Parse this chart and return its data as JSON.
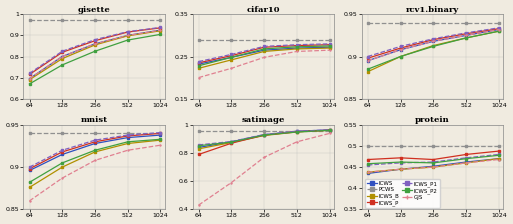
{
  "x": [
    64,
    128,
    256,
    512,
    1024
  ],
  "datasets": {
    "gisette": {
      "ylim": [
        0.6,
        1.0
      ],
      "yticks": [
        0.6,
        0.7,
        0.8,
        0.9,
        1.0
      ],
      "yticklabels": [
        "0.6",
        "0.7",
        "0.8",
        "0.9",
        "1"
      ],
      "series": {
        "ICWS": {
          "values": [
            0.695,
            0.8,
            0.86,
            0.9,
            0.925
          ],
          "color": "#3050c0",
          "style": "-",
          "marker": "s",
          "lw": 0.9
        },
        "PCWS": {
          "values": [
            0.975,
            0.975,
            0.975,
            0.975,
            0.975
          ],
          "color": "#909090",
          "style": "--",
          "marker": "s",
          "lw": 0.9
        },
        "ICWS_B": {
          "values": [
            0.69,
            0.79,
            0.855,
            0.898,
            0.922
          ],
          "color": "#b09000",
          "style": "-",
          "marker": "s",
          "lw": 0.9
        },
        "ICWS_P": {
          "values": [
            0.715,
            0.82,
            0.875,
            0.916,
            0.936
          ],
          "color": "#d03020",
          "style": "-",
          "marker": "s",
          "lw": 0.9
        },
        "ICWS_P1": {
          "values": [
            0.72,
            0.825,
            0.88,
            0.918,
            0.938
          ],
          "color": "#8060c0",
          "style": "--",
          "marker": "s",
          "lw": 0.9
        },
        "ICWS_P2": {
          "values": [
            0.67,
            0.76,
            0.825,
            0.878,
            0.905
          ],
          "color": "#40a040",
          "style": "-",
          "marker": "s",
          "lw": 0.9
        },
        "GJS": {
          "values": [
            0.695,
            0.8,
            0.86,
            0.9,
            0.925
          ],
          "color": "#e08090",
          "style": "--",
          "marker": "+",
          "lw": 0.9
        }
      }
    },
    "cifar10": {
      "ylim": [
        0.15,
        0.35
      ],
      "yticks": [
        0.15,
        0.25,
        0.35
      ],
      "yticklabels": [
        "0.15",
        "0.25",
        "0.35"
      ],
      "series": {
        "ICWS": {
          "values": [
            0.232,
            0.248,
            0.265,
            0.27,
            0.272
          ],
          "color": "#3050c0",
          "style": "-",
          "marker": "s",
          "lw": 0.9
        },
        "PCWS": {
          "values": [
            0.29,
            0.29,
            0.29,
            0.29,
            0.29
          ],
          "color": "#909090",
          "style": "--",
          "marker": "s",
          "lw": 0.9
        },
        "ICWS_B": {
          "values": [
            0.222,
            0.242,
            0.262,
            0.268,
            0.27
          ],
          "color": "#b09000",
          "style": "-",
          "marker": "s",
          "lw": 0.9
        },
        "ICWS_P": {
          "values": [
            0.235,
            0.252,
            0.272,
            0.276,
            0.278
          ],
          "color": "#d03020",
          "style": "-",
          "marker": "s",
          "lw": 0.9
        },
        "ICWS_P1": {
          "values": [
            0.238,
            0.255,
            0.274,
            0.278,
            0.28
          ],
          "color": "#8060c0",
          "style": "--",
          "marker": "s",
          "lw": 0.9
        },
        "ICWS_P2": {
          "values": [
            0.228,
            0.248,
            0.268,
            0.273,
            0.275
          ],
          "color": "#40a040",
          "style": "-",
          "marker": "s",
          "lw": 0.9
        },
        "GJS": {
          "values": [
            0.2,
            0.222,
            0.248,
            0.262,
            0.265
          ],
          "color": "#e08090",
          "style": "--",
          "marker": "+",
          "lw": 0.9
        }
      }
    },
    "rcv1.binary": {
      "ylim": [
        0.85,
        0.95
      ],
      "yticks": [
        0.85,
        0.9,
        0.95
      ],
      "yticklabels": [
        "0.85",
        "0.9",
        "0.95"
      ],
      "series": {
        "ICWS": {
          "values": [
            0.895,
            0.908,
            0.918,
            0.925,
            0.932
          ],
          "color": "#3050c0",
          "style": "-",
          "marker": "s",
          "lw": 0.9
        },
        "PCWS": {
          "values": [
            0.94,
            0.94,
            0.94,
            0.94,
            0.94
          ],
          "color": "#909090",
          "style": "--",
          "marker": "s",
          "lw": 0.9
        },
        "ICWS_B": {
          "values": [
            0.882,
            0.9,
            0.913,
            0.922,
            0.93
          ],
          "color": "#b09000",
          "style": "-",
          "marker": "s",
          "lw": 0.9
        },
        "ICWS_P": {
          "values": [
            0.898,
            0.91,
            0.92,
            0.927,
            0.933
          ],
          "color": "#d03020",
          "style": "-",
          "marker": "s",
          "lw": 0.9
        },
        "ICWS_P1": {
          "values": [
            0.9,
            0.912,
            0.921,
            0.928,
            0.934
          ],
          "color": "#8060c0",
          "style": "--",
          "marker": "s",
          "lw": 0.9
        },
        "ICWS_P2": {
          "values": [
            0.885,
            0.9,
            0.912,
            0.922,
            0.93
          ],
          "color": "#40a040",
          "style": "-",
          "marker": "s",
          "lw": 0.9
        },
        "GJS": {
          "values": [
            0.895,
            0.908,
            0.918,
            0.925,
            0.932
          ],
          "color": "#e08090",
          "style": "--",
          "marker": "+",
          "lw": 0.9
        }
      }
    },
    "mnist": {
      "ylim": [
        0.85,
        0.95
      ],
      "yticks": [
        0.85,
        0.9,
        0.95
      ],
      "yticklabels": [
        "0.85",
        "0.9",
        "0.95"
      ],
      "series": {
        "ICWS": {
          "values": [
            0.896,
            0.915,
            0.928,
            0.935,
            0.938
          ],
          "color": "#3050c0",
          "style": "-",
          "marker": "s",
          "lw": 0.9
        },
        "PCWS": {
          "values": [
            0.94,
            0.94,
            0.94,
            0.94,
            0.94
          ],
          "color": "#909090",
          "style": "--",
          "marker": "s",
          "lw": 0.9
        },
        "ICWS_B": {
          "values": [
            0.876,
            0.9,
            0.918,
            0.928,
            0.932
          ],
          "color": "#b09000",
          "style": "-",
          "marker": "s",
          "lw": 0.9
        },
        "ICWS_P": {
          "values": [
            0.898,
            0.918,
            0.93,
            0.937,
            0.94
          ],
          "color": "#d03020",
          "style": "-",
          "marker": "s",
          "lw": 0.9
        },
        "ICWS_P1": {
          "values": [
            0.9,
            0.92,
            0.932,
            0.938,
            0.941
          ],
          "color": "#8060c0",
          "style": "--",
          "marker": "s",
          "lw": 0.9
        },
        "ICWS_P2": {
          "values": [
            0.882,
            0.905,
            0.92,
            0.93,
            0.933
          ],
          "color": "#40a040",
          "style": "-",
          "marker": "s",
          "lw": 0.9
        },
        "GJS": {
          "values": [
            0.86,
            0.887,
            0.908,
            0.92,
            0.926
          ],
          "color": "#e08090",
          "style": "--",
          "marker": "+",
          "lw": 0.9
        }
      }
    },
    "satimage": {
      "ylim": [
        0.4,
        1.0
      ],
      "yticks": [
        0.4,
        0.6,
        0.8,
        1.0
      ],
      "yticklabels": [
        "0.4",
        "0.6",
        "0.8",
        "1"
      ],
      "series": {
        "ICWS": {
          "values": [
            0.84,
            0.88,
            0.93,
            0.955,
            0.965
          ],
          "color": "#3050c0",
          "style": "-",
          "marker": "s",
          "lw": 0.9
        },
        "PCWS": {
          "values": [
            0.96,
            0.96,
            0.96,
            0.96,
            0.96
          ],
          "color": "#909090",
          "style": "--",
          "marker": "s",
          "lw": 0.9
        },
        "ICWS_B": {
          "values": [
            0.83,
            0.875,
            0.925,
            0.95,
            0.962
          ],
          "color": "#b09000",
          "style": "-",
          "marker": "s",
          "lw": 0.9
        },
        "ICWS_P": {
          "values": [
            0.79,
            0.87,
            0.928,
            0.952,
            0.963
          ],
          "color": "#d03020",
          "style": "-",
          "marker": "s",
          "lw": 0.9
        },
        "ICWS_P1": {
          "values": [
            0.858,
            0.882,
            0.932,
            0.955,
            0.965
          ],
          "color": "#8060c0",
          "style": "--",
          "marker": "s",
          "lw": 0.9
        },
        "ICWS_P2": {
          "values": [
            0.852,
            0.878,
            0.928,
            0.95,
            0.962
          ],
          "color": "#40a040",
          "style": "-",
          "marker": "s",
          "lw": 0.9
        },
        "GJS": {
          "values": [
            0.43,
            0.59,
            0.77,
            0.88,
            0.94
          ],
          "color": "#e08090",
          "style": "--",
          "marker": "+",
          "lw": 0.9
        }
      }
    },
    "protein": {
      "ylim": [
        0.35,
        0.55
      ],
      "yticks": [
        0.35,
        0.4,
        0.45,
        0.5,
        0.55
      ],
      "yticklabels": [
        "0.35",
        "0.4",
        "0.45",
        "0.5",
        "0.55"
      ],
      "series": {
        "ICWS": {
          "values": [
            0.435,
            0.445,
            0.452,
            0.462,
            0.47
          ],
          "color": "#3050c0",
          "style": "-",
          "marker": "s",
          "lw": 0.9
        },
        "PCWS": {
          "values": [
            0.5,
            0.5,
            0.5,
            0.5,
            0.5
          ],
          "color": "#909090",
          "style": "--",
          "marker": "s",
          "lw": 0.9
        },
        "ICWS_B": {
          "values": [
            0.438,
            0.445,
            0.45,
            0.46,
            0.47
          ],
          "color": "#b09000",
          "style": "-",
          "marker": "s",
          "lw": 0.9
        },
        "ICWS_P": {
          "values": [
            0.468,
            0.472,
            0.468,
            0.48,
            0.488
          ],
          "color": "#d03020",
          "style": "-",
          "marker": "s",
          "lw": 0.9
        },
        "ICWS_P1": {
          "values": [
            0.455,
            0.46,
            0.462,
            0.472,
            0.48
          ],
          "color": "#8060c0",
          "style": "--",
          "marker": "s",
          "lw": 0.9
        },
        "ICWS_P2": {
          "values": [
            0.458,
            0.462,
            0.46,
            0.47,
            0.478
          ],
          "color": "#40a040",
          "style": "-",
          "marker": "s",
          "lw": 0.9
        },
        "GJS": {
          "values": [
            0.438,
            0.445,
            0.45,
            0.46,
            0.468
          ],
          "color": "#e08090",
          "style": "--",
          "marker": "+",
          "lw": 0.9
        }
      }
    }
  },
  "legend_entries": [
    {
      "label": "ICWS",
      "color": "#3050c0",
      "style": "-",
      "marker": "s"
    },
    {
      "label": "PCWS",
      "color": "#909090",
      "style": "--",
      "marker": "s"
    },
    {
      "label": "ICWS_B",
      "color": "#b09000",
      "style": "-",
      "marker": "s"
    },
    {
      "label": "ICWS_P",
      "color": "#d03020",
      "style": "-",
      "marker": "s"
    },
    {
      "label": "ICWS_P1",
      "color": "#8060c0",
      "style": "--",
      "marker": "s"
    },
    {
      "label": "ICWS_P2",
      "color": "#40a040",
      "style": "-",
      "marker": "s"
    },
    {
      "label": "GJS",
      "color": "#e08090",
      "style": "--",
      "marker": "+"
    }
  ],
  "subplot_order": [
    [
      "gisette",
      "cifar10",
      "rcv1.binary"
    ],
    [
      "mnist",
      "satimage",
      "protein"
    ]
  ],
  "legend_subplot": "protein",
  "background_color": "#f0ebe0"
}
